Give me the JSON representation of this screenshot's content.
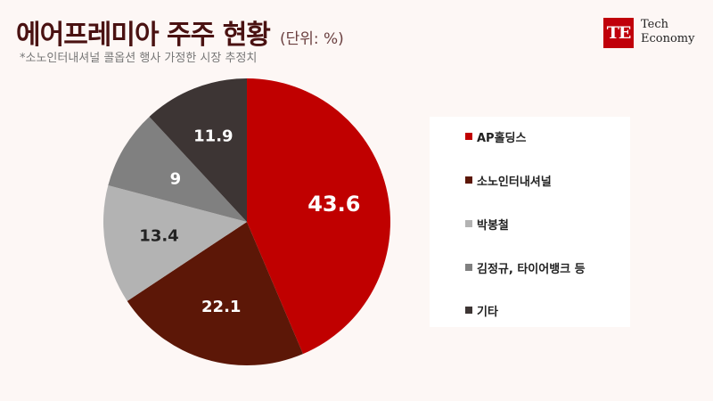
{
  "header": {
    "title": "에어프레미아 주주 현황",
    "unit": "(단위: %)",
    "subtitle": "*소노인터내셔널 콜옵션 행사 가정한 시장 추정치"
  },
  "logo": {
    "mark": "TE",
    "line1": "Tech",
    "line2": "Economy"
  },
  "chart_data": {
    "type": "pie",
    "start": "12 o'clock, clockwise",
    "categories": [
      "AP홀딩스",
      "소노인터내셔널",
      "박봉철",
      "김정규, 타이어뱅크 등",
      "기타"
    ],
    "values": [
      43.6,
      22.1,
      13.4,
      9,
      11.9
    ],
    "labels": [
      "43.6",
      "22.1",
      "13.4",
      "9",
      "11.9"
    ],
    "colors": [
      "#c00000",
      "#5c1707",
      "#b3b3b3",
      "#808080",
      "#3d3534"
    ],
    "label_colors": [
      "#ffffff",
      "#ffffff",
      "#222222",
      "#ffffff",
      "#ffffff"
    ],
    "legend": "right"
  }
}
